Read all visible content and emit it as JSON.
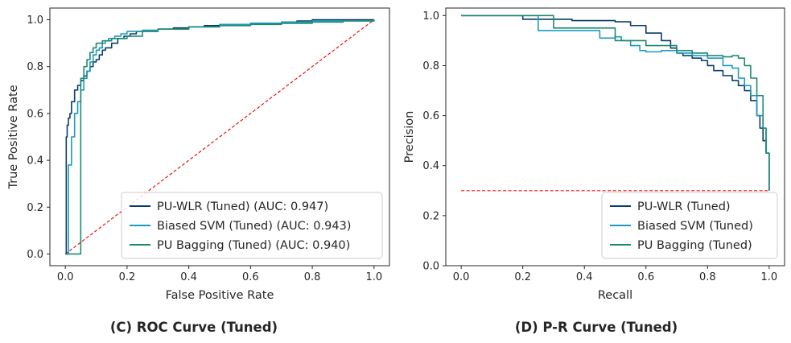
{
  "colors": {
    "pu_wlr": "#0b3d6b",
    "biased_svm": "#1a9bbf",
    "pu_bagging": "#1f8a70",
    "reference": "#ee1111"
  },
  "chart_data": [
    {
      "type": "line",
      "caption": "(C) ROC Curve (Tuned)",
      "xlabel": "False Positive Rate",
      "ylabel": "True Positive Rate",
      "xlim": [
        -0.05,
        1.05
      ],
      "ylim": [
        -0.05,
        1.05
      ],
      "xticks": [
        "0.0",
        "0.2",
        "0.4",
        "0.6",
        "0.8",
        "1.0"
      ],
      "yticks": [
        "0.0",
        "0.2",
        "0.4",
        "0.6",
        "0.8",
        "1.0"
      ],
      "grid": false,
      "legend": "lower-right",
      "series": [
        {
          "name": "PU-WLR (Tuned) (AUC: 0.947)",
          "color_key": "pu_wlr",
          "step": true,
          "x": [
            0,
            0.003,
            0.006,
            0.01,
            0.015,
            0.02,
            0.03,
            0.04,
            0.05,
            0.06,
            0.07,
            0.08,
            0.09,
            0.1,
            0.11,
            0.12,
            0.13,
            0.15,
            0.17,
            0.19,
            0.21,
            0.23,
            0.25,
            0.3,
            0.35,
            0.4,
            0.45,
            0.5,
            0.6,
            0.7,
            0.75,
            0.8,
            0.9,
            1.0
          ],
          "y": [
            0,
            0.5,
            0.55,
            0.58,
            0.6,
            0.65,
            0.7,
            0.72,
            0.74,
            0.76,
            0.78,
            0.8,
            0.82,
            0.83,
            0.85,
            0.87,
            0.88,
            0.9,
            0.92,
            0.93,
            0.94,
            0.95,
            0.955,
            0.96,
            0.965,
            0.97,
            0.975,
            0.98,
            0.985,
            0.99,
            0.995,
            1.0,
            1.0,
            1.0
          ]
        },
        {
          "name": "Biased SVM (Tuned) (AUC: 0.943)",
          "color_key": "biased_svm",
          "step": true,
          "x": [
            0,
            0.01,
            0.02,
            0.03,
            0.04,
            0.05,
            0.06,
            0.07,
            0.08,
            0.09,
            0.1,
            0.11,
            0.12,
            0.13,
            0.14,
            0.16,
            0.18,
            0.2,
            0.25,
            0.3,
            0.4,
            0.5,
            0.6,
            0.7,
            0.8,
            1.0
          ],
          "y": [
            0,
            0.38,
            0.5,
            0.6,
            0.65,
            0.7,
            0.75,
            0.78,
            0.82,
            0.85,
            0.87,
            0.88,
            0.9,
            0.91,
            0.92,
            0.93,
            0.94,
            0.95,
            0.955,
            0.96,
            0.97,
            0.98,
            0.985,
            0.99,
            0.995,
            1.0
          ]
        },
        {
          "name": "PU Bagging (Tuned) (AUC: 0.940)",
          "color_key": "pu_bagging",
          "step": true,
          "x": [
            0,
            0.05,
            0.06,
            0.07,
            0.08,
            0.09,
            0.1,
            0.12,
            0.15,
            0.2,
            0.25,
            0.3,
            0.4,
            0.5,
            0.6,
            0.7,
            0.8,
            0.9,
            1.0
          ],
          "y": [
            0,
            0.75,
            0.8,
            0.83,
            0.86,
            0.88,
            0.9,
            0.91,
            0.92,
            0.93,
            0.95,
            0.96,
            0.97,
            0.975,
            0.98,
            0.985,
            0.99,
            0.995,
            1.0
          ]
        }
      ],
      "reference_line": {
        "x": [
          0,
          1
        ],
        "y": [
          0,
          1
        ],
        "color_key": "reference",
        "dashed": true
      }
    },
    {
      "type": "line",
      "caption": "(D) P-R Curve (Tuned)",
      "xlabel": "Recall",
      "ylabel": "Precision",
      "xlim": [
        -0.05,
        1.05
      ],
      "ylim": [
        0.0,
        1.03
      ],
      "xticks": [
        "0.0",
        "0.2",
        "0.4",
        "0.6",
        "0.8",
        "1.0"
      ],
      "yticks": [
        "0.0",
        "0.2",
        "0.4",
        "0.6",
        "0.8",
        "1.0"
      ],
      "grid": false,
      "legend": "lower-right",
      "series": [
        {
          "name": "PU-WLR (Tuned)",
          "color_key": "pu_wlr",
          "step": true,
          "x": [
            0,
            0.2,
            0.36,
            0.5,
            0.55,
            0.6,
            0.65,
            0.68,
            0.7,
            0.72,
            0.75,
            0.78,
            0.8,
            0.82,
            0.85,
            0.88,
            0.9,
            0.92,
            0.94,
            0.96,
            0.97,
            0.98,
            0.99,
            1.0
          ],
          "y": [
            1.0,
            0.985,
            0.98,
            0.975,
            0.96,
            0.93,
            0.9,
            0.87,
            0.85,
            0.84,
            0.83,
            0.82,
            0.8,
            0.78,
            0.76,
            0.74,
            0.72,
            0.7,
            0.66,
            0.6,
            0.55,
            0.5,
            0.45,
            0.3
          ]
        },
        {
          "name": "Biased SVM (Tuned)",
          "color_key": "biased_svm",
          "step": true,
          "x": [
            0,
            0.25,
            0.45,
            0.5,
            0.52,
            0.55,
            0.58,
            0.6,
            0.65,
            0.7,
            0.75,
            0.8,
            0.85,
            0.88,
            0.9,
            0.92,
            0.94,
            0.96,
            0.98,
            0.99,
            1.0
          ],
          "y": [
            1.0,
            0.94,
            0.91,
            0.915,
            0.9,
            0.88,
            0.86,
            0.855,
            0.86,
            0.85,
            0.84,
            0.83,
            0.8,
            0.79,
            0.75,
            0.72,
            0.68,
            0.6,
            0.55,
            0.45,
            0.3
          ]
        },
        {
          "name": "PU Bagging (Tuned)",
          "color_key": "pu_bagging",
          "step": true,
          "x": [
            0,
            0.3,
            0.5,
            0.6,
            0.7,
            0.75,
            0.8,
            0.85,
            0.88,
            0.9,
            0.92,
            0.94,
            0.96,
            0.98,
            0.99,
            1.0
          ],
          "y": [
            1.0,
            0.95,
            0.9,
            0.88,
            0.86,
            0.85,
            0.84,
            0.835,
            0.84,
            0.83,
            0.8,
            0.75,
            0.68,
            0.55,
            0.45,
            0.3
          ]
        }
      ],
      "reference_line": {
        "x": [
          0,
          1
        ],
        "y": [
          0.3,
          0.3
        ],
        "color_key": "reference",
        "dashed": true
      }
    }
  ]
}
